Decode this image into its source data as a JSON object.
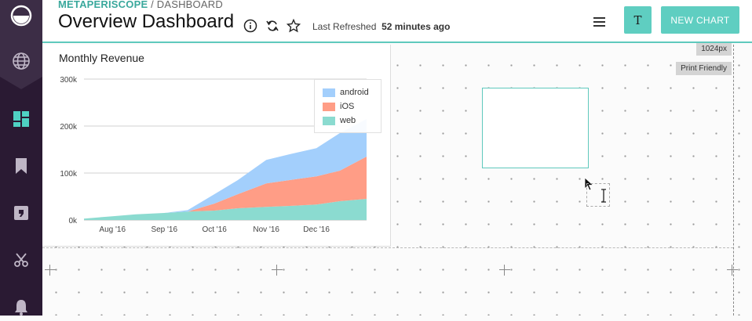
{
  "header": {
    "brand": "METAPERISCOPE",
    "breadcrumb_sep": " / ",
    "breadcrumb_page": "DASHBOARD",
    "title": "Overview Dashboard",
    "refresh_label": "Last Refreshed",
    "refresh_value": "52 minutes ago",
    "avatar_letter": "T",
    "new_chart_label": "NEW CHART"
  },
  "canvas": {
    "width_badge": "1024px",
    "print_badge": "Print Friendly"
  },
  "sidebar": {
    "items": [
      "logo-icon",
      "globe-icon",
      "dashboard-icon",
      "bookmark-icon",
      "query-icon",
      "scissors-icon",
      "bell-icon"
    ]
  },
  "colors": {
    "accent": "#5fcec1",
    "sidebar": "#2a1a33",
    "android": "#a3cffc",
    "ios": "#ff9d86",
    "web": "#8bdbd0"
  },
  "chart_data": {
    "type": "area",
    "title": "Monthly Revenue",
    "xlabel": "",
    "ylabel": "",
    "x_ticks": [
      "Aug '16",
      "Sep '16",
      "Oct '16",
      "Nov '16",
      "Dec '16"
    ],
    "y_ticks": [
      "0k",
      "100k",
      "200k",
      "300k"
    ],
    "ylim": [
      0,
      300000
    ],
    "stacked": true,
    "legend_position": "top-right",
    "grid": "horizontal",
    "x": [
      "2016-07-15",
      "2016-08-01",
      "2016-08-15",
      "2016-09-01",
      "2016-09-15",
      "2016-10-01",
      "2016-10-15",
      "2016-11-01",
      "2016-11-15",
      "2016-12-01",
      "2016-12-15",
      "2016-12-31"
    ],
    "series": [
      {
        "name": "web",
        "values": [
          3000,
          8000,
          12000,
          15000,
          18000,
          20000,
          25000,
          28000,
          30000,
          33000,
          40000,
          45000
        ]
      },
      {
        "name": "iOS",
        "values": [
          0,
          0,
          0,
          0,
          0,
          15000,
          30000,
          50000,
          55000,
          60000,
          65000,
          90000
        ]
      },
      {
        "name": "android",
        "values": [
          0,
          0,
          0,
          0,
          3000,
          20000,
          30000,
          50000,
          55000,
          60000,
          80000,
          80000
        ]
      }
    ]
  }
}
